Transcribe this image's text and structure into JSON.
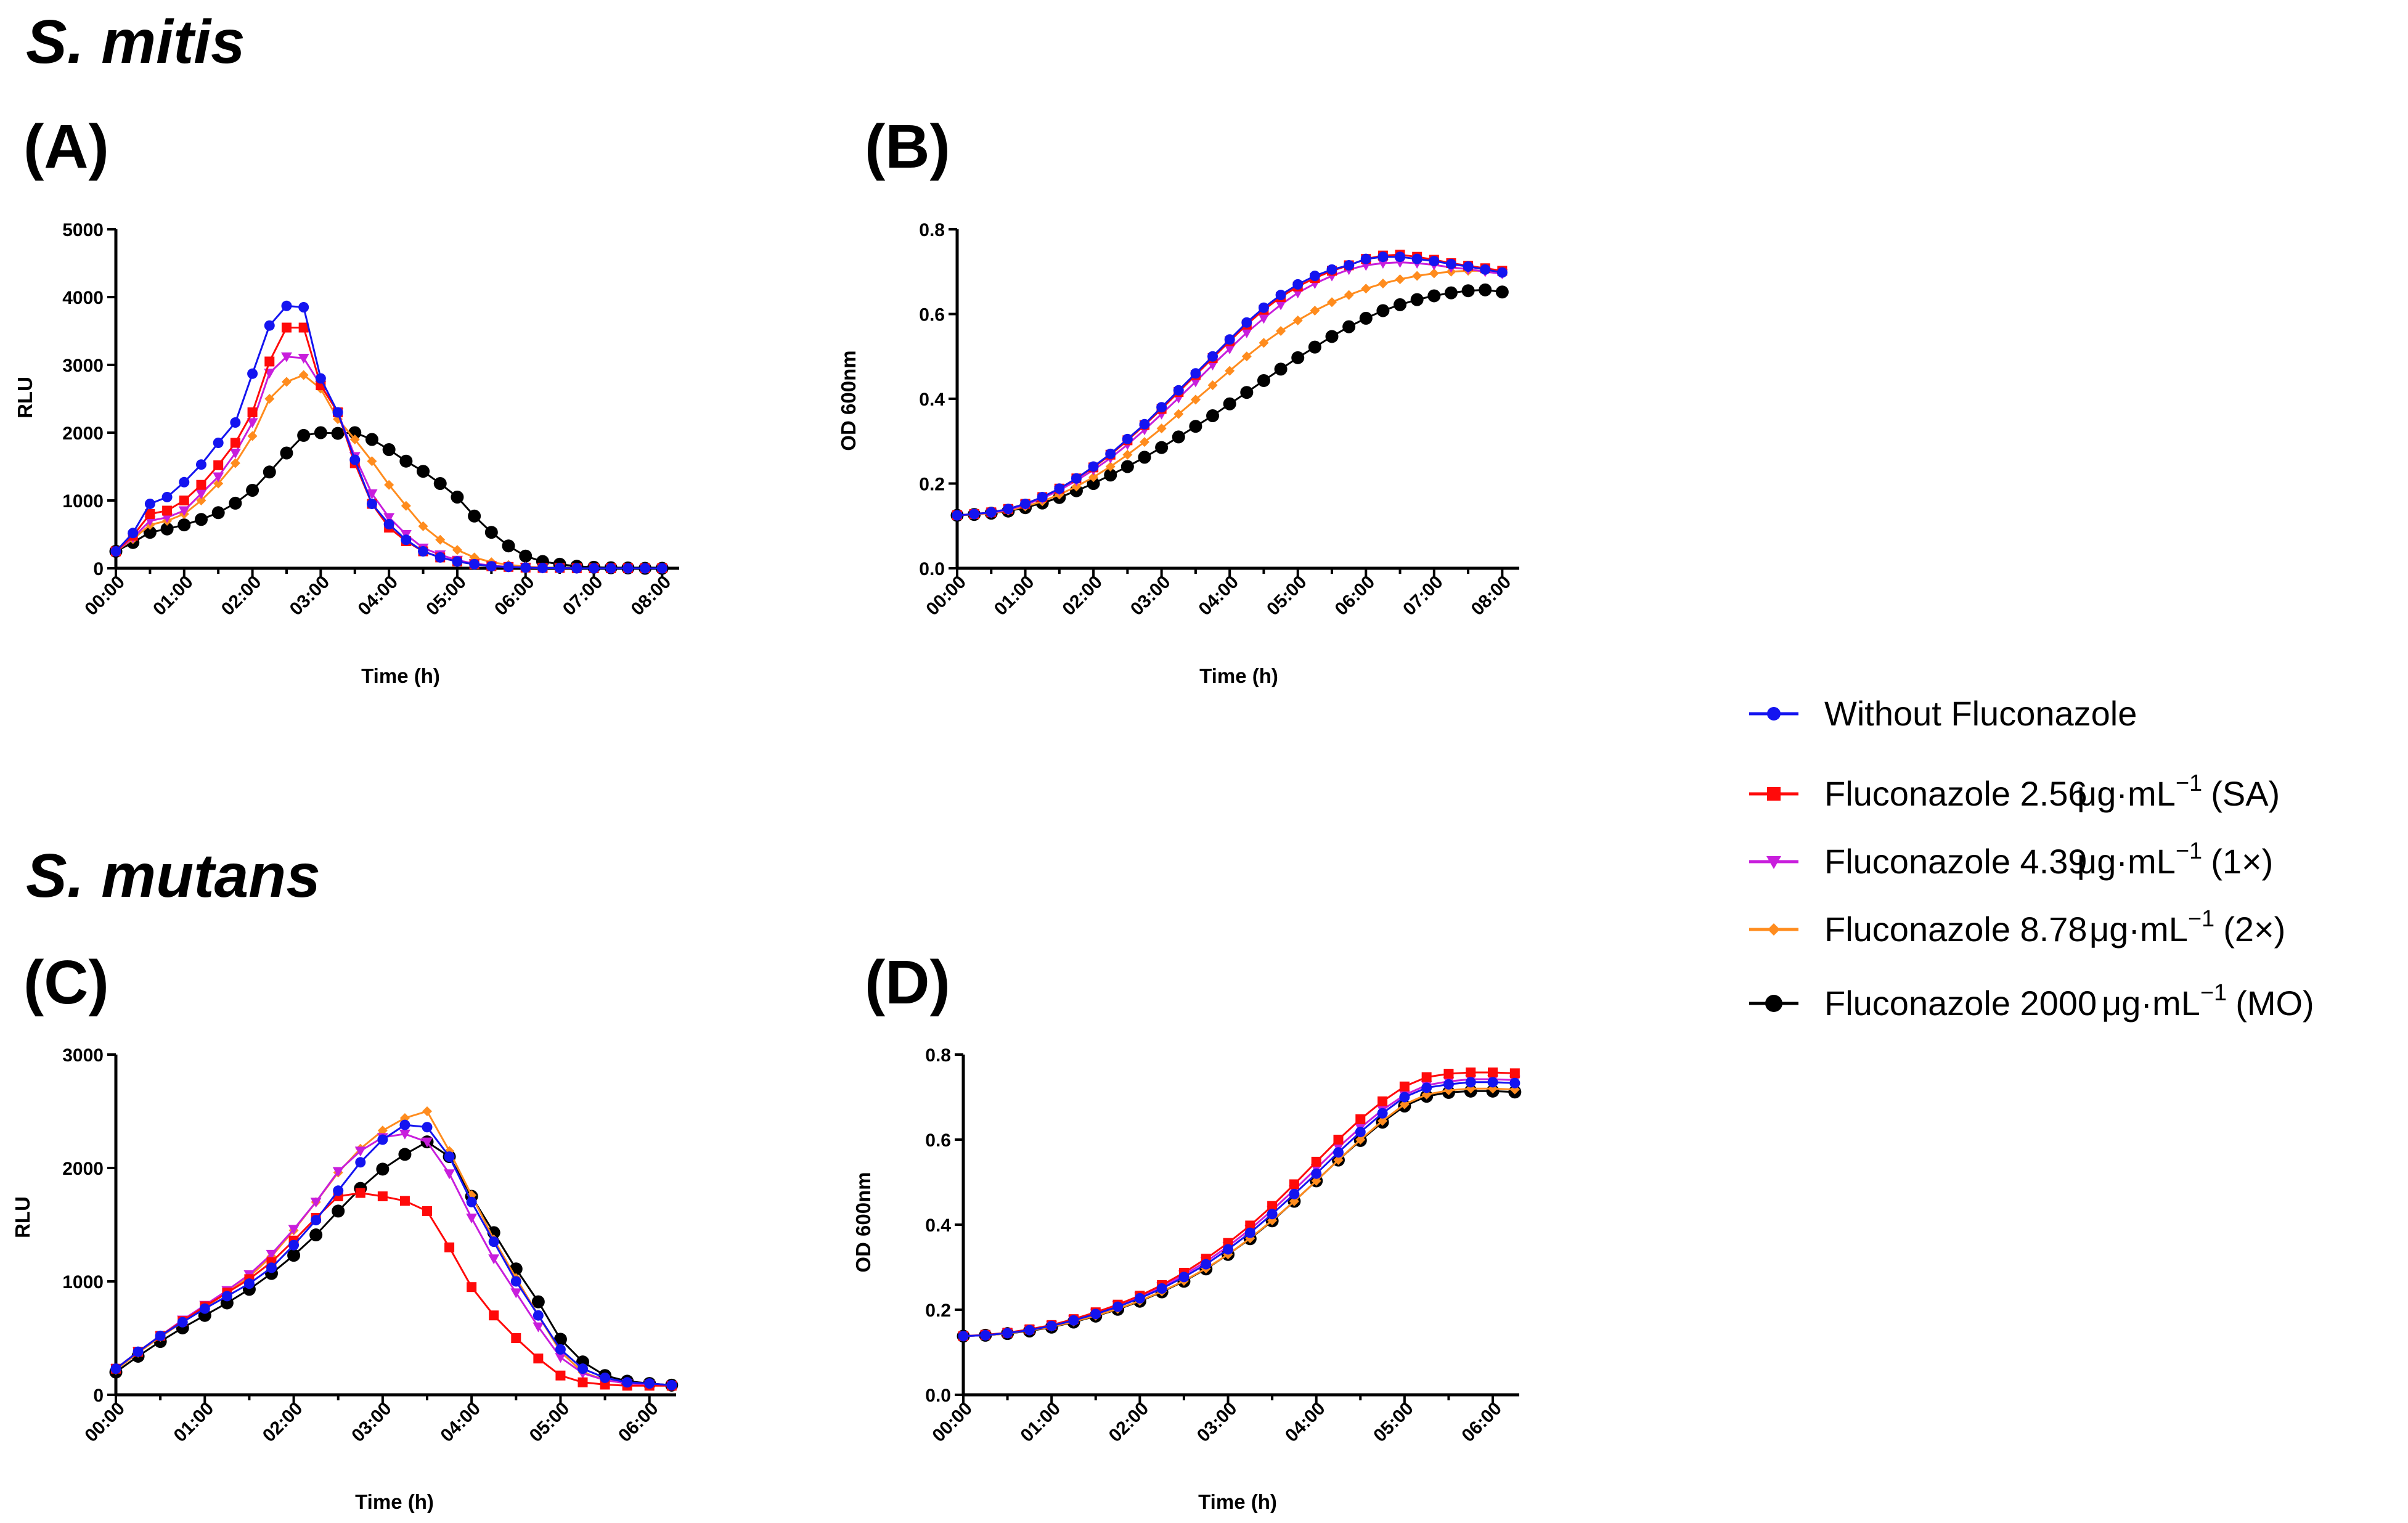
{
  "figure": {
    "species_top": "S. mitis",
    "species_bottom": "S. mutans"
  },
  "colors": {
    "without": "#1414f0",
    "sa": "#ff0a0a",
    "x1": "#c81edc",
    "x2": "#ff8c1e",
    "mo": "#000000"
  },
  "legend": [
    {
      "key": "without",
      "prefix": "Without Fluconazole",
      "unit": "",
      "sup": "",
      "suffix": ""
    },
    {
      "key": "sa",
      "prefix": "Fluconazole 2.56",
      "unit": "μg·mL",
      "sup": "−1",
      "suffix": "(SA)"
    },
    {
      "key": "x1",
      "prefix": "Fluconazole 4.39",
      "unit": "μg·mL",
      "sup": "−1",
      "suffix": "(1×)"
    },
    {
      "key": "x2",
      "prefix": "Fluconazole 8.78",
      "unit": "μg·mL",
      "sup": "−1",
      "suffix": "(2×)"
    },
    {
      "key": "mo",
      "prefix": "Fluconazole 2000",
      "unit": "μg·mL",
      "sup": "−1",
      "suffix": "(MO)"
    }
  ],
  "chart_data": [
    {
      "id": "A",
      "label": "(A)",
      "type": "line",
      "xlabel": "Time (h)",
      "ylabel": "RLU",
      "xlim": [
        0,
        8.25
      ],
      "ylim": [
        0,
        5000
      ],
      "xticks": [
        "00:00",
        "01:00",
        "02:00",
        "03:00",
        "04:00",
        "05:00",
        "06:00",
        "07:00",
        "08:00"
      ],
      "yticks": [
        0,
        1000,
        2000,
        3000,
        4000,
        5000
      ],
      "step_minutes": 15,
      "series": [
        {
          "key": "without",
          "values": [
            250,
            520,
            950,
            1050,
            1270,
            1530,
            1850,
            2150,
            2870,
            3580,
            3870,
            3850,
            2800,
            2300,
            1600,
            950,
            650,
            420,
            250,
            160,
            100,
            60,
            30,
            20,
            10,
            5,
            5,
            0,
            0,
            0,
            0,
            0,
            0
          ]
        },
        {
          "key": "sa",
          "values": [
            250,
            480,
            800,
            850,
            1000,
            1230,
            1520,
            1850,
            2300,
            3050,
            3550,
            3550,
            2700,
            2300,
            1550,
            950,
            600,
            400,
            250,
            160,
            100,
            60,
            30,
            20,
            10,
            5,
            5,
            0,
            0,
            0,
            0,
            0,
            0
          ]
        },
        {
          "key": "x1",
          "values": [
            250,
            450,
            700,
            750,
            850,
            1100,
            1350,
            1700,
            2150,
            2880,
            3120,
            3100,
            2700,
            2300,
            1650,
            1100,
            750,
            500,
            300,
            200,
            120,
            70,
            40,
            20,
            10,
            5,
            5,
            0,
            0,
            0,
            0,
            0,
            0
          ]
        },
        {
          "key": "x2",
          "values": [
            250,
            430,
            640,
            700,
            800,
            1000,
            1250,
            1550,
            1950,
            2500,
            2750,
            2850,
            2650,
            2200,
            1900,
            1580,
            1230,
            920,
            620,
            420,
            270,
            160,
            90,
            50,
            25,
            10,
            5,
            0,
            0,
            0,
            0,
            0,
            0
          ]
        },
        {
          "key": "mo",
          "values": [
            250,
            380,
            530,
            580,
            640,
            720,
            820,
            960,
            1150,
            1420,
            1700,
            1960,
            2000,
            1990,
            2000,
            1900,
            1750,
            1580,
            1430,
            1250,
            1050,
            770,
            530,
            330,
            180,
            100,
            60,
            30,
            15,
            8,
            5,
            0,
            0
          ]
        }
      ]
    },
    {
      "id": "B",
      "label": "(B)",
      "type": "line",
      "xlabel": "Time (h)",
      "ylabel": "OD 600nm",
      "xlim": [
        0,
        8.25
      ],
      "ylim": [
        0,
        0.8
      ],
      "xticks": [
        "00:00",
        "01:00",
        "02:00",
        "03:00",
        "04:00",
        "05:00",
        "06:00",
        "07:00",
        "08:00"
      ],
      "yticks": [
        0.0,
        0.2,
        0.4,
        0.6,
        0.8
      ],
      "step_minutes": 15,
      "series": [
        {
          "key": "without",
          "values": [
            0.125,
            0.128,
            0.132,
            0.14,
            0.152,
            0.168,
            0.188,
            0.212,
            0.24,
            0.27,
            0.305,
            0.34,
            0.38,
            0.42,
            0.46,
            0.5,
            0.54,
            0.58,
            0.615,
            0.645,
            0.67,
            0.69,
            0.705,
            0.715,
            0.73,
            0.735,
            0.735,
            0.73,
            0.725,
            0.718,
            0.712,
            0.705,
            0.698
          ]
        },
        {
          "key": "sa",
          "values": [
            0.125,
            0.128,
            0.132,
            0.14,
            0.152,
            0.168,
            0.188,
            0.212,
            0.238,
            0.268,
            0.302,
            0.338,
            0.376,
            0.416,
            0.456,
            0.496,
            0.536,
            0.575,
            0.61,
            0.64,
            0.665,
            0.685,
            0.702,
            0.715,
            0.73,
            0.738,
            0.74,
            0.735,
            0.728,
            0.72,
            0.714,
            0.708,
            0.702
          ]
        },
        {
          "key": "x1",
          "values": [
            0.125,
            0.128,
            0.131,
            0.138,
            0.15,
            0.165,
            0.184,
            0.207,
            0.232,
            0.26,
            0.292,
            0.327,
            0.364,
            0.402,
            0.44,
            0.48,
            0.518,
            0.556,
            0.59,
            0.622,
            0.65,
            0.672,
            0.69,
            0.705,
            0.715,
            0.72,
            0.722,
            0.72,
            0.716,
            0.71,
            0.706,
            0.7,
            0.695
          ]
        },
        {
          "key": "x2",
          "values": [
            0.125,
            0.127,
            0.13,
            0.136,
            0.146,
            0.158,
            0.174,
            0.193,
            0.215,
            0.24,
            0.268,
            0.298,
            0.33,
            0.364,
            0.398,
            0.432,
            0.466,
            0.5,
            0.532,
            0.56,
            0.585,
            0.608,
            0.628,
            0.645,
            0.66,
            0.672,
            0.682,
            0.69,
            0.696,
            0.7,
            0.702,
            0.702,
            0.7
          ]
        },
        {
          "key": "mo",
          "values": [
            0.125,
            0.127,
            0.13,
            0.135,
            0.143,
            0.154,
            0.167,
            0.183,
            0.2,
            0.22,
            0.24,
            0.262,
            0.285,
            0.31,
            0.335,
            0.36,
            0.388,
            0.415,
            0.443,
            0.47,
            0.497,
            0.522,
            0.547,
            0.57,
            0.59,
            0.608,
            0.622,
            0.634,
            0.643,
            0.65,
            0.655,
            0.657,
            0.652
          ]
        }
      ]
    },
    {
      "id": "C",
      "label": "(C)",
      "type": "line",
      "xlabel": "Time (h)",
      "ylabel": "RLU",
      "xlim": [
        0,
        6.3
      ],
      "ylim": [
        0,
        3000
      ],
      "xticks": [
        "00:00",
        "01:00",
        "02:00",
        "03:00",
        "04:00",
        "05:00",
        "06:00"
      ],
      "yticks": [
        0,
        1000,
        2000,
        3000
      ],
      "step_minutes": 15,
      "series": [
        {
          "key": "without",
          "values": [
            230,
            380,
            520,
            640,
            760,
            870,
            980,
            1120,
            1320,
            1540,
            1800,
            2050,
            2250,
            2380,
            2360,
            2100,
            1700,
            1350,
            1000,
            700,
            400,
            230,
            150,
            110,
            100,
            85
          ]
        },
        {
          "key": "sa",
          "values": [
            230,
            380,
            520,
            650,
            780,
            900,
            1020,
            1170,
            1360,
            1560,
            1750,
            1780,
            1750,
            1710,
            1620,
            1300,
            950,
            700,
            500,
            320,
            170,
            110,
            90,
            80,
            80,
            80
          ]
        },
        {
          "key": "x1",
          "values": [
            230,
            380,
            520,
            660,
            790,
            920,
            1060,
            1240,
            1460,
            1700,
            1970,
            2150,
            2270,
            2300,
            2230,
            1950,
            1560,
            1200,
            900,
            600,
            330,
            190,
            130,
            100,
            90,
            85
          ]
        },
        {
          "key": "x2",
          "values": [
            220,
            370,
            510,
            640,
            770,
            900,
            1040,
            1220,
            1450,
            1700,
            1960,
            2170,
            2330,
            2440,
            2500,
            2150,
            1760,
            1370,
            1030,
            700,
            380,
            200,
            130,
            100,
            90,
            85
          ]
        },
        {
          "key": "mo",
          "values": [
            200,
            340,
            470,
            590,
            700,
            810,
            930,
            1070,
            1230,
            1410,
            1620,
            1820,
            1990,
            2120,
            2230,
            2100,
            1750,
            1430,
            1110,
            820,
            490,
            290,
            170,
            120,
            100,
            85
          ]
        }
      ]
    },
    {
      "id": "D",
      "label": "(D)",
      "type": "line",
      "xlabel": "Time (h)",
      "ylabel": "OD 600nm",
      "xlim": [
        0,
        6.3
      ],
      "ylim": [
        0,
        0.8
      ],
      "xticks": [
        "00:00",
        "01:00",
        "02:00",
        "03:00",
        "04:00",
        "05:00",
        "06:00"
      ],
      "yticks": [
        0.0,
        0.2,
        0.4,
        0.6,
        0.8
      ],
      "step_minutes": 15,
      "series": [
        {
          "key": "without",
          "values": [
            0.138,
            0.14,
            0.145,
            0.152,
            0.162,
            0.175,
            0.19,
            0.207,
            0.227,
            0.25,
            0.277,
            0.307,
            0.342,
            0.381,
            0.425,
            0.472,
            0.52,
            0.57,
            0.618,
            0.662,
            0.7,
            0.722,
            0.73,
            0.735,
            0.735,
            0.733
          ]
        },
        {
          "key": "sa",
          "values": [
            0.138,
            0.141,
            0.146,
            0.154,
            0.164,
            0.178,
            0.194,
            0.212,
            0.233,
            0.258,
            0.287,
            0.32,
            0.357,
            0.398,
            0.444,
            0.495,
            0.548,
            0.6,
            0.648,
            0.69,
            0.725,
            0.747,
            0.755,
            0.758,
            0.758,
            0.756
          ]
        },
        {
          "key": "x1",
          "values": [
            0.138,
            0.14,
            0.146,
            0.153,
            0.163,
            0.176,
            0.192,
            0.21,
            0.23,
            0.254,
            0.282,
            0.313,
            0.349,
            0.389,
            0.434,
            0.482,
            0.532,
            0.582,
            0.628,
            0.67,
            0.705,
            0.728,
            0.737,
            0.742,
            0.742,
            0.74
          ]
        },
        {
          "key": "x2",
          "values": [
            0.138,
            0.14,
            0.144,
            0.151,
            0.16,
            0.172,
            0.186,
            0.202,
            0.221,
            0.243,
            0.268,
            0.297,
            0.33,
            0.368,
            0.41,
            0.455,
            0.503,
            0.552,
            0.6,
            0.644,
            0.683,
            0.706,
            0.716,
            0.72,
            0.72,
            0.718
          ]
        },
        {
          "key": "mo",
          "values": [
            0.138,
            0.14,
            0.144,
            0.15,
            0.159,
            0.171,
            0.185,
            0.201,
            0.22,
            0.242,
            0.267,
            0.296,
            0.33,
            0.367,
            0.409,
            0.455,
            0.503,
            0.552,
            0.598,
            0.641,
            0.679,
            0.702,
            0.711,
            0.714,
            0.714,
            0.712
          ]
        }
      ]
    }
  ]
}
